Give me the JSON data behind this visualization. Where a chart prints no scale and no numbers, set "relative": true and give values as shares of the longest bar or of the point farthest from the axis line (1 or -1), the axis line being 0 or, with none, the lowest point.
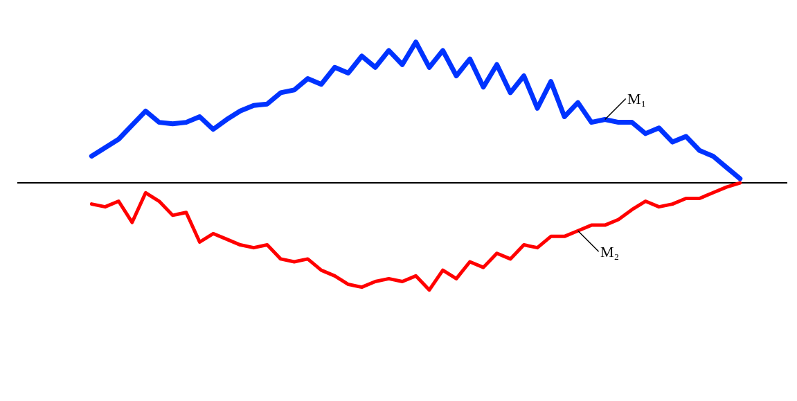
{
  "chart_data": {
    "type": "line",
    "relative": true,
    "legend": false,
    "marker": "none",
    "line_style": "solid",
    "categories": [
      null,
      null,
      null,
      null,
      null,
      null,
      null,
      null,
      null,
      null,
      null,
      null,
      null,
      null,
      null,
      null,
      null,
      null,
      null,
      null,
      null,
      null,
      null,
      null,
      null,
      null,
      null,
      null,
      null,
      null,
      null,
      null,
      null,
      null,
      null,
      null,
      null,
      null,
      null,
      null,
      null,
      null,
      null,
      null,
      null,
      null,
      null,
      null,
      null
    ],
    "series": [
      {
        "name": "M₁",
        "color": "#0033ff",
        "values": [
          0.19,
          0.25,
          0.31,
          0.41,
          0.51,
          0.43,
          0.42,
          0.43,
          0.47,
          0.38,
          0.45,
          0.51,
          0.55,
          0.56,
          0.64,
          0.66,
          0.74,
          0.7,
          0.82,
          0.78,
          0.9,
          0.82,
          0.94,
          0.84,
          1.0,
          0.82,
          0.94,
          0.76,
          0.88,
          0.68,
          0.84,
          0.64,
          0.76,
          0.53,
          0.72,
          0.47,
          0.57,
          0.43,
          0.45,
          0.43,
          0.43,
          0.35,
          0.39,
          0.29,
          0.33,
          0.23,
          0.19,
          0.11,
          0.03
        ]
      },
      {
        "name": "M₂",
        "color": "#ff0000",
        "values": [
          -0.15,
          -0.17,
          -0.13,
          -0.28,
          -0.07,
          -0.13,
          -0.23,
          -0.21,
          -0.42,
          -0.36,
          -0.4,
          -0.44,
          -0.46,
          -0.44,
          -0.54,
          -0.56,
          -0.54,
          -0.62,
          -0.66,
          -0.72,
          -0.74,
          -0.7,
          -0.68,
          -0.7,
          -0.66,
          -0.76,
          -0.62,
          -0.68,
          -0.56,
          -0.6,
          -0.5,
          -0.54,
          -0.44,
          -0.46,
          -0.38,
          -0.38,
          -0.34,
          -0.3,
          -0.3,
          -0.26,
          -0.19,
          -0.13,
          -0.17,
          -0.15,
          -0.11,
          -0.11,
          -0.07,
          -0.03,
          0.0
        ]
      }
    ]
  }
}
